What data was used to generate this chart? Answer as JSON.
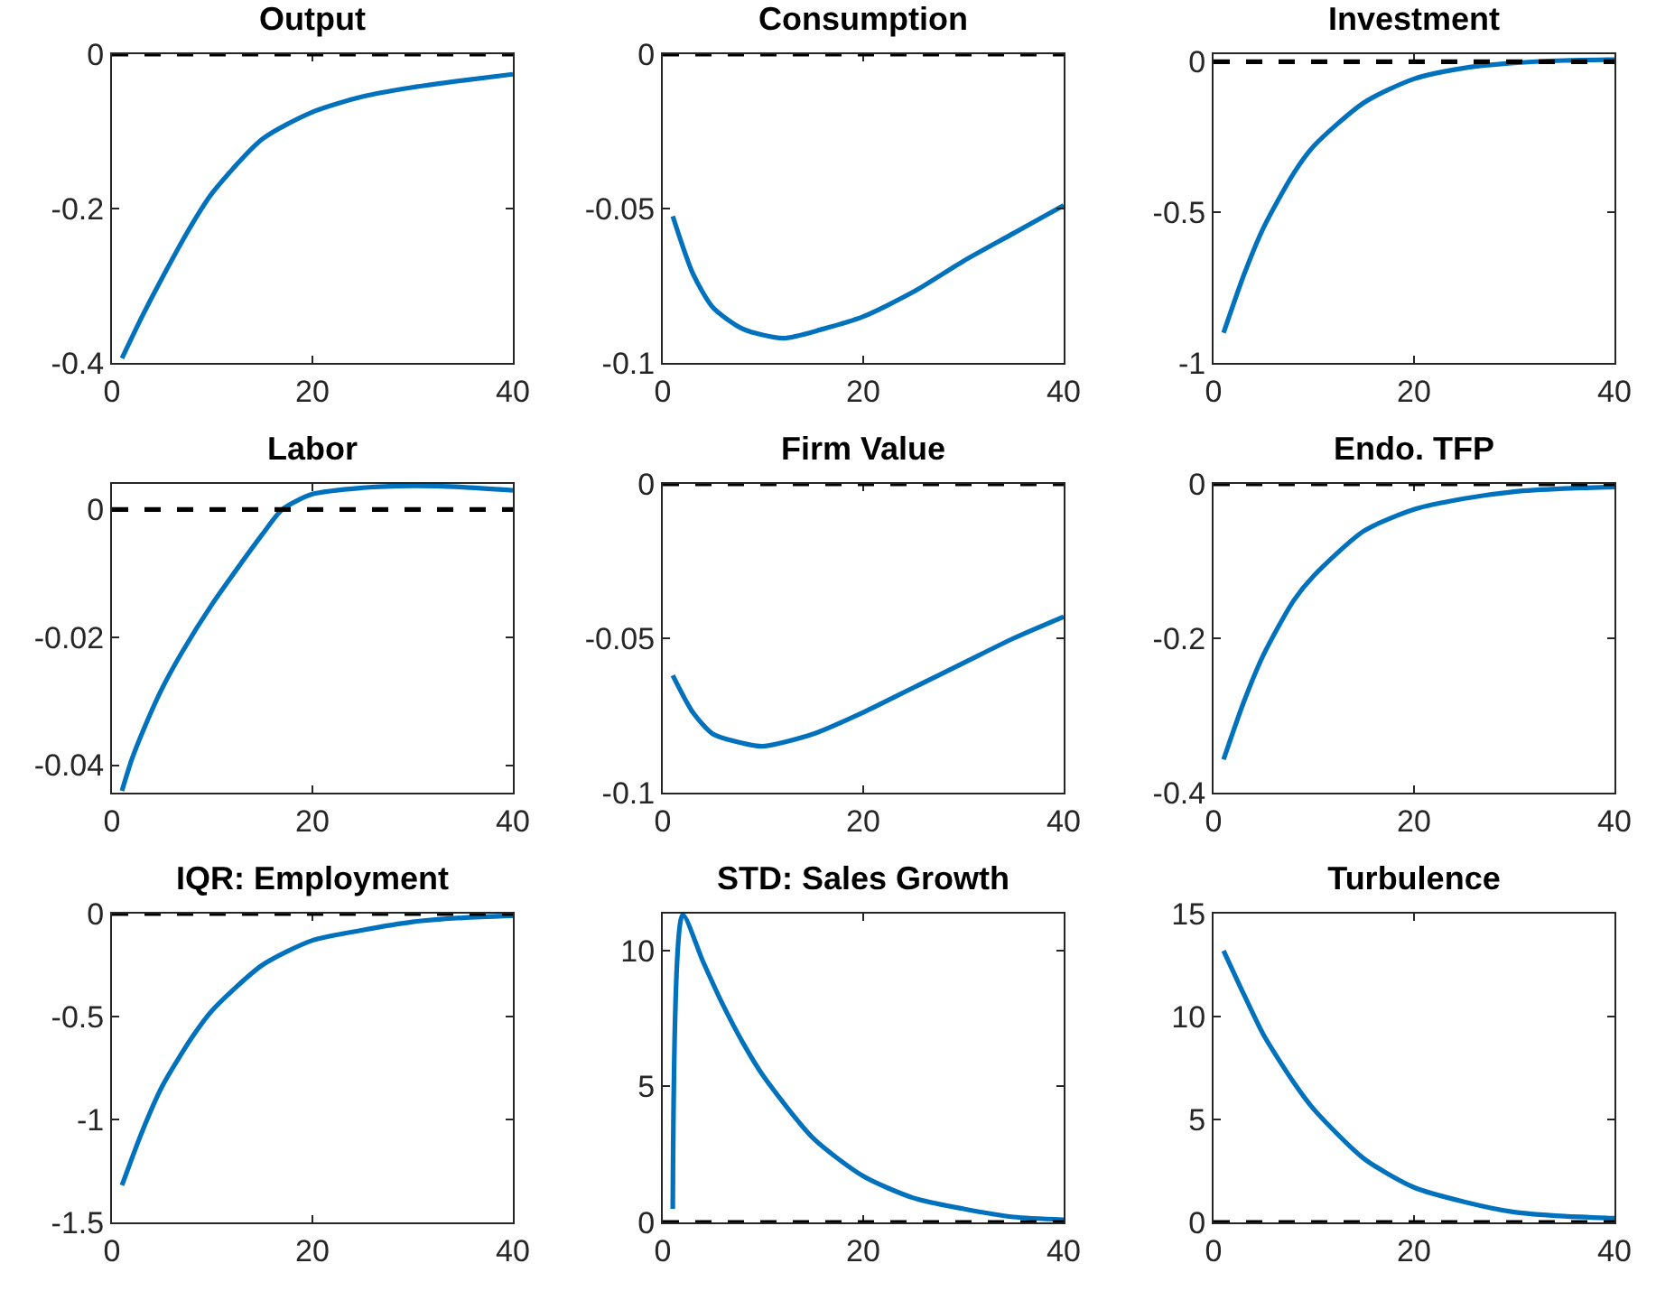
{
  "chart_data": [
    {
      "type": "line",
      "title": "Output",
      "x": [
        1,
        3,
        5,
        8,
        10,
        15,
        20,
        25,
        30,
        35,
        40
      ],
      "series": [
        {
          "color": "#0072bd",
          "values": [
            -0.394,
            -0.34,
            -0.29,
            -0.22,
            -0.18,
            -0.11,
            -0.075,
            -0.055,
            -0.043,
            -0.034,
            -0.026
          ]
        }
      ],
      "xlim": [
        0,
        40
      ],
      "xticks": [
        0,
        20,
        40
      ],
      "ylim": [
        -0.4,
        0
      ],
      "yticks": [
        -0.4,
        -0.2,
        0
      ],
      "ref_lines": [
        {
          "axis": "y",
          "value": 0,
          "color": "#000000",
          "line_style": "dashed"
        }
      ],
      "grid": false,
      "marker": "none",
      "line_style": "solid"
    },
    {
      "type": "line",
      "title": "Consumption",
      "x": [
        1,
        3,
        5,
        8,
        12,
        16,
        20,
        25,
        30,
        35,
        40
      ],
      "series": [
        {
          "color": "#0072bd",
          "values": [
            -0.0525,
            -0.071,
            -0.082,
            -0.089,
            -0.092,
            -0.089,
            -0.085,
            -0.077,
            -0.067,
            -0.058,
            -0.049
          ]
        }
      ],
      "xlim": [
        0,
        40
      ],
      "xticks": [
        0,
        20,
        40
      ],
      "ylim": [
        -0.1,
        0
      ],
      "yticks": [
        -0.1,
        -0.05,
        0
      ],
      "ref_lines": [
        {
          "axis": "y",
          "value": 0,
          "color": "#000000",
          "line_style": "dashed"
        }
      ],
      "grid": false,
      "marker": "none",
      "line_style": "solid"
    },
    {
      "type": "line",
      "title": "Investment",
      "x": [
        1,
        3,
        5,
        8,
        10,
        15,
        20,
        25,
        30,
        35,
        40
      ],
      "series": [
        {
          "color": "#0072bd",
          "values": [
            -0.9,
            -0.71,
            -0.55,
            -0.37,
            -0.28,
            -0.136,
            -0.057,
            -0.021,
            -0.004,
            0.004,
            0.007
          ]
        }
      ],
      "xlim": [
        0,
        40
      ],
      "xticks": [
        0,
        20,
        40
      ],
      "ylim": [
        -1,
        0.025
      ],
      "yticks": [
        -1,
        -0.5,
        0
      ],
      "ref_lines": [
        {
          "axis": "y",
          "value": 0,
          "color": "#000000",
          "line_style": "dashed"
        }
      ],
      "grid": false,
      "marker": "none",
      "line_style": "solid"
    },
    {
      "type": "line",
      "title": "Labor",
      "x": [
        1,
        2,
        3,
        5,
        7,
        10,
        15,
        17,
        20,
        25,
        30,
        35,
        40
      ],
      "series": [
        {
          "color": "#0072bd",
          "values": [
            -0.044,
            -0.039,
            -0.035,
            -0.028,
            -0.0223,
            -0.0148,
            -0.0039,
            0,
            0.0024,
            0.0034,
            0.0037,
            0.0035,
            0.003
          ]
        }
      ],
      "xlim": [
        0,
        40
      ],
      "xticks": [
        0,
        20,
        40
      ],
      "ylim": [
        -0.0443,
        0.004
      ],
      "yticks": [
        -0.04,
        -0.02,
        0
      ],
      "ref_lines": [
        {
          "axis": "y",
          "value": 0,
          "color": "#000000",
          "line_style": "dashed"
        }
      ],
      "grid": false,
      "marker": "none",
      "line_style": "solid"
    },
    {
      "type": "line",
      "title": "Firm Value",
      "x": [
        1,
        3,
        5,
        8,
        10,
        15,
        20,
        25,
        30,
        35,
        40
      ],
      "series": [
        {
          "color": "#0072bd",
          "values": [
            -0.062,
            -0.074,
            -0.081,
            -0.084,
            -0.085,
            -0.081,
            -0.074,
            -0.066,
            -0.058,
            -0.05,
            -0.043
          ]
        }
      ],
      "xlim": [
        0,
        40
      ],
      "xticks": [
        0,
        20,
        40
      ],
      "ylim": [
        -0.1,
        0
      ],
      "yticks": [
        -0.1,
        -0.05,
        0
      ],
      "ref_lines": [
        {
          "axis": "y",
          "value": 0,
          "color": "#000000",
          "line_style": "dashed"
        }
      ],
      "grid": false,
      "marker": "none",
      "line_style": "solid"
    },
    {
      "type": "line",
      "title": "Endo. TFP",
      "x": [
        1,
        3,
        5,
        8,
        10,
        15,
        20,
        25,
        30,
        35,
        40
      ],
      "series": [
        {
          "color": "#0072bd",
          "values": [
            -0.357,
            -0.283,
            -0.221,
            -0.151,
            -0.119,
            -0.061,
            -0.033,
            -0.019,
            -0.01,
            -0.006,
            -0.004
          ]
        }
      ],
      "xlim": [
        0,
        40
      ],
      "xticks": [
        0,
        20,
        40
      ],
      "ylim": [
        -0.4,
        0
      ],
      "yticks": [
        -0.4,
        -0.2,
        0
      ],
      "ref_lines": [
        {
          "axis": "y",
          "value": 0,
          "color": "#000000",
          "line_style": "dashed"
        }
      ],
      "grid": false,
      "marker": "none",
      "line_style": "solid"
    },
    {
      "type": "line",
      "title": "IQR: Employment",
      "x": [
        1,
        3,
        5,
        8,
        10,
        15,
        20,
        25,
        30,
        35,
        40
      ],
      "series": [
        {
          "color": "#0072bd",
          "values": [
            -1.32,
            -1.06,
            -0.84,
            -0.6,
            -0.47,
            -0.25,
            -0.13,
            -0.08,
            -0.04,
            -0.02,
            -0.01
          ]
        }
      ],
      "xlim": [
        0,
        40
      ],
      "xticks": [
        0,
        20,
        40
      ],
      "ylim": [
        -1.5,
        0
      ],
      "yticks": [
        -1.5,
        -1,
        -0.5,
        0
      ],
      "ref_lines": [
        {
          "axis": "y",
          "value": 0,
          "color": "#000000",
          "line_style": "dashed"
        }
      ],
      "grid": false,
      "marker": "none",
      "line_style": "solid"
    },
    {
      "type": "line",
      "title": "STD: Sales Growth",
      "x": [
        1,
        2,
        4,
        6,
        8,
        10,
        15,
        20,
        25,
        30,
        35,
        40
      ],
      "series": [
        {
          "color": "#0072bd",
          "values": [
            0.5,
            11.3,
            9.6,
            8,
            6.6,
            5.4,
            3.1,
            1.7,
            0.9,
            0.5,
            0.2,
            0.1
          ]
        }
      ],
      "xlim": [
        0,
        40
      ],
      "xticks": [
        0,
        20,
        40
      ],
      "ylim": [
        0,
        11.35
      ],
      "yticks": [
        0,
        5,
        10
      ],
      "ref_lines": [
        {
          "axis": "y",
          "value": 0,
          "color": "#000000",
          "line_style": "dashed"
        }
      ],
      "grid": false,
      "marker": "none",
      "line_style": "solid"
    },
    {
      "type": "line",
      "title": "Turbulence",
      "x": [
        1,
        3,
        5,
        8,
        10,
        15,
        20,
        25,
        30,
        35,
        40
      ],
      "series": [
        {
          "color": "#0072bd",
          "values": [
            13.2,
            11.1,
            9.1,
            6.8,
            5.5,
            3.1,
            1.7,
            1,
            0.5,
            0.3,
            0.2
          ]
        }
      ],
      "xlim": [
        0,
        40
      ],
      "xticks": [
        0,
        20,
        40
      ],
      "ylim": [
        0,
        15
      ],
      "yticks": [
        0,
        5,
        10,
        15
      ],
      "ref_lines": [
        {
          "axis": "y",
          "value": 0,
          "color": "#000000",
          "line_style": "dashed"
        }
      ],
      "grid": false,
      "marker": "none",
      "line_style": "solid"
    }
  ]
}
